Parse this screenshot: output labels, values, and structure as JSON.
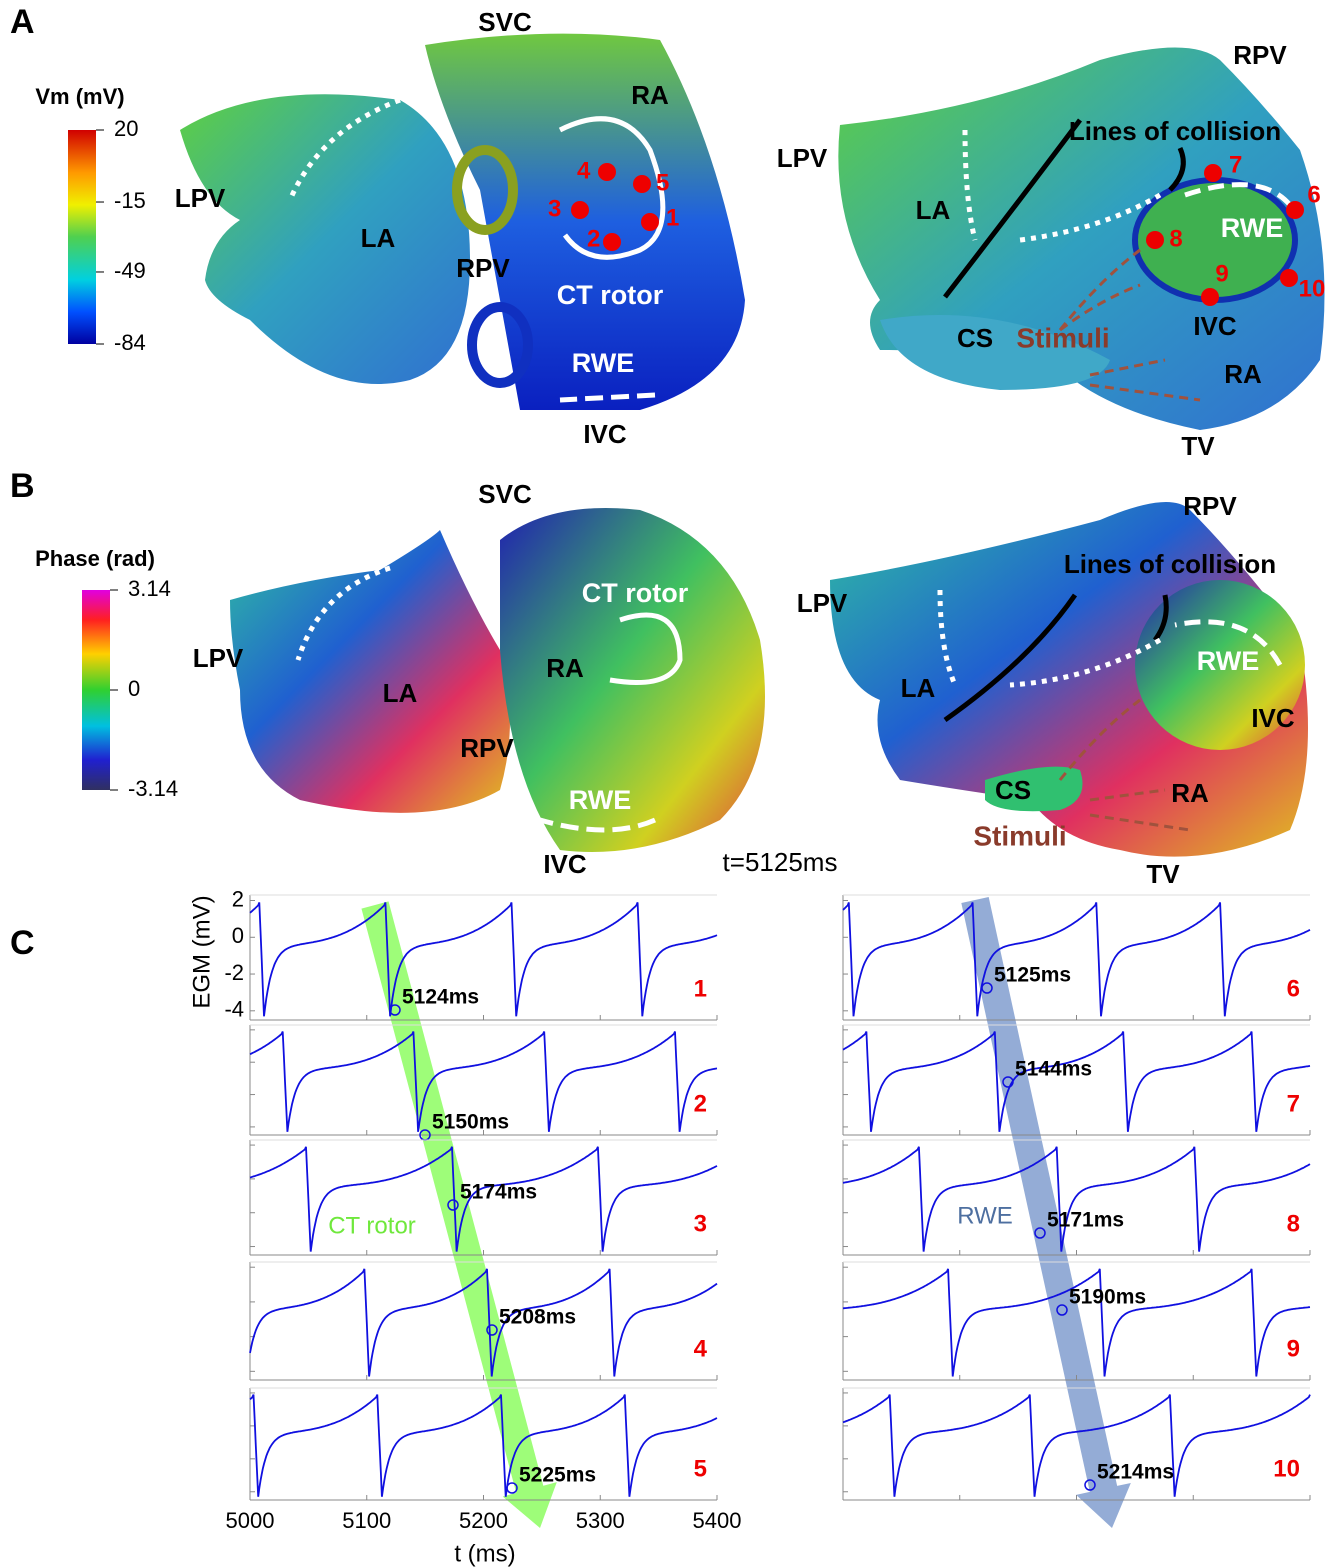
{
  "panel_a": {
    "label": "A",
    "colorbar": {
      "title": "Vm (mV)",
      "lim": [
        -84,
        20
      ],
      "ticks": [
        20,
        -15,
        -49,
        -84
      ]
    },
    "left": {
      "labels": [
        "SVC",
        "RA",
        "LPV",
        "LA",
        "RPV",
        "CT rotor",
        "RWE",
        "IVC"
      ],
      "points": [
        "1",
        "2",
        "3",
        "4",
        "5"
      ]
    },
    "right": {
      "labels": [
        "RPV",
        "Lines of collision",
        "LPV",
        "LA",
        "RWE",
        "CS",
        "Stimuli",
        "IVC",
        "RA",
        "TV"
      ],
      "points": [
        "6",
        "7",
        "8",
        "9",
        "10"
      ]
    }
  },
  "panel_b": {
    "label": "B",
    "colorbar": {
      "title": "Phase (rad)",
      "lim": [
        -3.14,
        3.14
      ],
      "ticks": [
        3.14,
        0,
        -3.14
      ]
    },
    "left": {
      "labels": [
        "SVC",
        "CT rotor",
        "LPV",
        "RA",
        "LA",
        "RPV",
        "RWE",
        "IVC"
      ]
    },
    "right": {
      "labels": [
        "RPV",
        "Lines of collision",
        "LPV",
        "RWE",
        "LA",
        "IVC",
        "CS",
        "RA",
        "Stimuli",
        "TV"
      ]
    },
    "time": "t=5125ms"
  },
  "panel_c": {
    "label": "C",
    "y_label": "EGM (mV)",
    "ylim": [
      -4.5,
      2.3
    ],
    "yticks": [
      2,
      0,
      -2,
      -4
    ],
    "x_label": "t (ms)",
    "xlim": [
      5000,
      5400
    ],
    "xticks": [
      5000,
      5100,
      5200,
      5300,
      5400
    ],
    "left": {
      "arrow_label": "CT rotor",
      "traces": [
        {
          "number": "1",
          "time": "5124ms"
        },
        {
          "number": "2",
          "time": "5150ms"
        },
        {
          "number": "3",
          "time": "5174ms"
        },
        {
          "number": "4",
          "time": "5208ms"
        },
        {
          "number": "5",
          "time": "5225ms"
        }
      ]
    },
    "right": {
      "arrow_label": "RWE",
      "traces": [
        {
          "number": "6",
          "time": "5125ms"
        },
        {
          "number": "7",
          "time": "5144ms"
        },
        {
          "number": "8",
          "time": "5171ms"
        },
        {
          "number": "9",
          "time": "5190ms"
        },
        {
          "number": "10",
          "time": "5214ms"
        }
      ]
    }
  }
}
